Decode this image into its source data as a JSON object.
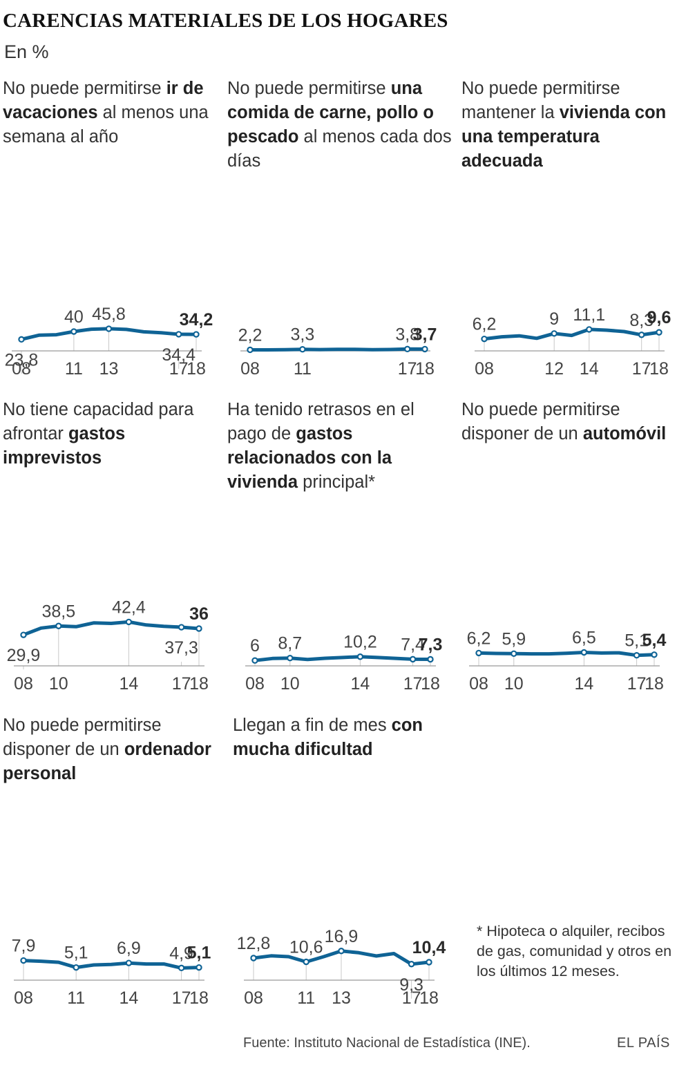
{
  "title": "CARENCIAS MATERIALES DE LOS HOGARES",
  "subtitle": "En %",
  "note": "* Hipoteca o alquiler, recibos de gas, comunidad y otros en los últimos 12 meses.",
  "source": "Fuente: Instituto Nacional de Estadística (INE).",
  "logo": "EL PAÍS",
  "colors": {
    "line": "#0f6395",
    "text": "#333333",
    "grid": "#c8c8c8"
  },
  "chart_data": [
    {
      "type": "line",
      "title_parts": [
        {
          "t": "No puede permitirse ",
          "b": false
        },
        {
          "t": "ir de vacaciones",
          "b": true
        },
        {
          "t": " al menos una semana al año",
          "b": false
        }
      ],
      "x": [
        2008,
        2009,
        2010,
        2011,
        2012,
        2013,
        2014,
        2015,
        2016,
        2017,
        2018
      ],
      "values": [
        23.8,
        32.5,
        33.5,
        40,
        44.8,
        45.8,
        44.5,
        39.5,
        37.5,
        34.4,
        34.2
      ],
      "ylim": [
        0,
        48
      ],
      "ticks": [
        {
          "x": 2008,
          "label": "08"
        },
        {
          "x": 2011,
          "label": "11"
        },
        {
          "x": 2013,
          "label": "13"
        },
        {
          "x": 2017,
          "label": "17"
        },
        {
          "x": 2018,
          "label": "18"
        }
      ],
      "markers": [
        {
          "x": 2008,
          "label": "23,8",
          "pos": "below"
        },
        {
          "x": 2011,
          "label": "40",
          "pos": "above"
        },
        {
          "x": 2013,
          "label": "45,8",
          "pos": "above"
        },
        {
          "x": 2017,
          "label": "34,4",
          "pos": "below"
        },
        {
          "x": 2018,
          "label": "34,2",
          "pos": "above",
          "last": true
        }
      ]
    },
    {
      "type": "line",
      "title_parts": [
        {
          "t": "No puede permitirse ",
          "b": false
        },
        {
          "t": "una comida de carne, pollo o pescado",
          "b": true
        },
        {
          "t": " al menos cada dos días",
          "b": false
        }
      ],
      "x": [
        2008,
        2009,
        2010,
        2011,
        2012,
        2013,
        2014,
        2015,
        2016,
        2017,
        2018
      ],
      "values": [
        2.2,
        2.1,
        2.6,
        3.3,
        2.7,
        3.2,
        3.2,
        2.6,
        2.8,
        3.8,
        3.7
      ],
      "ylim": [
        0,
        48
      ],
      "ticks": [
        {
          "x": 2008,
          "label": "08"
        },
        {
          "x": 2011,
          "label": "11"
        },
        {
          "x": 2017,
          "label": "17"
        },
        {
          "x": 2018,
          "label": "18"
        }
      ],
      "markers": [
        {
          "x": 2008,
          "label": "2,2",
          "pos": "above"
        },
        {
          "x": 2011,
          "label": "3,3",
          "pos": "above"
        },
        {
          "x": 2017,
          "label": "3,8",
          "pos": "above"
        },
        {
          "x": 2018,
          "label": "3,7",
          "pos": "above",
          "last": true
        }
      ]
    },
    {
      "type": "line",
      "title_parts": [
        {
          "t": "No puede permitirse mantener la ",
          "b": false
        },
        {
          "t": "vivienda con una temperatura adecuada",
          "b": true
        }
      ],
      "x": [
        2008,
        2009,
        2010,
        2011,
        2012,
        2013,
        2014,
        2015,
        2016,
        2017,
        2018
      ],
      "values": [
        6.2,
        7.3,
        7.8,
        6.5,
        9,
        8,
        11.1,
        10.7,
        10,
        8.3,
        9.6
      ],
      "ylim": [
        0,
        48
      ],
      "ticks": [
        {
          "x": 2008,
          "label": "08"
        },
        {
          "x": 2012,
          "label": "12"
        },
        {
          "x": 2014,
          "label": "14"
        },
        {
          "x": 2017,
          "label": "17"
        },
        {
          "x": 2018,
          "label": "18"
        }
      ],
      "markers": [
        {
          "x": 2008,
          "label": "6,2",
          "pos": "above"
        },
        {
          "x": 2012,
          "label": "9",
          "pos": "above"
        },
        {
          "x": 2014,
          "label": "11,1",
          "pos": "above"
        },
        {
          "x": 2017,
          "label": "8,3",
          "pos": "above"
        },
        {
          "x": 2018,
          "label": "9,6",
          "pos": "above",
          "last": true
        }
      ]
    },
    {
      "type": "line",
      "title_parts": [
        {
          "t": "No tiene capacidad para afrontar ",
          "b": false
        },
        {
          "t": "gastos imprevistos",
          "b": true
        }
      ],
      "x": [
        2008,
        2009,
        2010,
        2011,
        2012,
        2013,
        2014,
        2015,
        2016,
        2017,
        2018
      ],
      "values": [
        29.9,
        36.5,
        38.5,
        37.8,
        41.5,
        41,
        42.4,
        39.5,
        38.2,
        37.3,
        36
      ],
      "ylim": [
        0,
        48
      ],
      "ticks": [
        {
          "x": 2008,
          "label": "08"
        },
        {
          "x": 2010,
          "label": "10"
        },
        {
          "x": 2014,
          "label": "14"
        },
        {
          "x": 2017,
          "label": "17"
        },
        {
          "x": 2018,
          "label": "18"
        }
      ],
      "markers": [
        {
          "x": 2008,
          "label": "29,9",
          "pos": "below"
        },
        {
          "x": 2010,
          "label": "38,5",
          "pos": "above"
        },
        {
          "x": 2014,
          "label": "42,4",
          "pos": "above"
        },
        {
          "x": 2017,
          "label": "37,3",
          "pos": "below"
        },
        {
          "x": 2018,
          "label": "36",
          "pos": "above",
          "last": true
        }
      ]
    },
    {
      "type": "line",
      "title_parts": [
        {
          "t": "Ha tenido retrasos en el pago de ",
          "b": false
        },
        {
          "t": "gastos relacionados con la vivienda",
          "b": true
        },
        {
          "t": " principal*",
          "b": false
        }
      ],
      "x": [
        2008,
        2009,
        2010,
        2011,
        2012,
        2013,
        2014,
        2015,
        2016,
        2017,
        2018
      ],
      "values": [
        6,
        8.2,
        8.7,
        7.1,
        8.5,
        9.3,
        10.2,
        9.3,
        8.4,
        7.4,
        7.3
      ],
      "ylim": [
        0,
        48
      ],
      "ticks": [
        {
          "x": 2008,
          "label": "08"
        },
        {
          "x": 2010,
          "label": "10"
        },
        {
          "x": 2014,
          "label": "14"
        },
        {
          "x": 2017,
          "label": "17"
        },
        {
          "x": 2018,
          "label": "18"
        }
      ],
      "markers": [
        {
          "x": 2008,
          "label": "6",
          "pos": "above"
        },
        {
          "x": 2010,
          "label": "8,7",
          "pos": "above"
        },
        {
          "x": 2014,
          "label": "10,2",
          "pos": "above"
        },
        {
          "x": 2017,
          "label": "7,4",
          "pos": "above"
        },
        {
          "x": 2018,
          "label": "7,3",
          "pos": "above",
          "last": true
        }
      ]
    },
    {
      "type": "line",
      "title_parts": [
        {
          "t": "No puede permitirse disponer de un ",
          "b": false
        },
        {
          "t": "automóvil",
          "b": true
        }
      ],
      "x": [
        2008,
        2009,
        2010,
        2011,
        2012,
        2013,
        2014,
        2015,
        2016,
        2017,
        2018
      ],
      "values": [
        6.2,
        6.0,
        5.9,
        5.8,
        5.8,
        6.1,
        6.5,
        6.2,
        6.3,
        5.1,
        5.4
      ],
      "ylim": [
        0,
        48
      ],
      "ticks": [
        {
          "x": 2008,
          "label": "08"
        },
        {
          "x": 2010,
          "label": "10"
        },
        {
          "x": 2014,
          "label": "14"
        },
        {
          "x": 2017,
          "label": "17"
        },
        {
          "x": 2018,
          "label": "18"
        }
      ],
      "markers": [
        {
          "x": 2008,
          "label": "6,2",
          "pos": "above"
        },
        {
          "x": 2010,
          "label": "5,9",
          "pos": "above"
        },
        {
          "x": 2014,
          "label": "6,5",
          "pos": "above"
        },
        {
          "x": 2017,
          "label": "5,1",
          "pos": "above"
        },
        {
          "x": 2018,
          "label": "5,4",
          "pos": "above",
          "last": true
        }
      ]
    },
    {
      "type": "line",
      "title_parts": [
        {
          "t": "No puede permitirse disponer de un ",
          "b": false
        },
        {
          "t": "ordenador personal",
          "b": true
        }
      ],
      "x": [
        2008,
        2009,
        2010,
        2011,
        2012,
        2013,
        2014,
        2015,
        2016,
        2017,
        2018
      ],
      "values": [
        7.9,
        7.6,
        7.2,
        5.1,
        6.1,
        6.3,
        6.9,
        6.5,
        6.5,
        4.9,
        5.1
      ],
      "ylim": [
        0,
        48
      ],
      "ticks": [
        {
          "x": 2008,
          "label": "08"
        },
        {
          "x": 2011,
          "label": "11"
        },
        {
          "x": 2014,
          "label": "14"
        },
        {
          "x": 2017,
          "label": "17"
        },
        {
          "x": 2018,
          "label": "18"
        }
      ],
      "markers": [
        {
          "x": 2008,
          "label": "7,9",
          "pos": "above"
        },
        {
          "x": 2011,
          "label": "5,1",
          "pos": "above"
        },
        {
          "x": 2014,
          "label": "6,9",
          "pos": "above"
        },
        {
          "x": 2017,
          "label": "4,9",
          "pos": "above"
        },
        {
          "x": 2018,
          "label": "5,1",
          "pos": "above",
          "last": true
        }
      ]
    },
    {
      "type": "line",
      "title_parts": [
        {
          "t": "Llegan a fin de mes ",
          "b": false
        },
        {
          "t": "con mucha dificultad",
          "b": true
        }
      ],
      "x": [
        2008,
        2009,
        2010,
        2011,
        2012,
        2013,
        2014,
        2015,
        2016,
        2017,
        2018
      ],
      "values": [
        12.8,
        14.1,
        13.6,
        10.6,
        13.6,
        16.9,
        15.9,
        14,
        15.4,
        9.3,
        10.4
      ],
      "ylim": [
        0,
        48
      ],
      "ticks": [
        {
          "x": 2008,
          "label": "08"
        },
        {
          "x": 2011,
          "label": "11"
        },
        {
          "x": 2013,
          "label": "13"
        },
        {
          "x": 2017,
          "label": "17"
        },
        {
          "x": 2018,
          "label": "18"
        }
      ],
      "markers": [
        {
          "x": 2008,
          "label": "12,8",
          "pos": "above"
        },
        {
          "x": 2011,
          "label": "10,6",
          "pos": "above"
        },
        {
          "x": 2013,
          "label": "16,9",
          "pos": "above"
        },
        {
          "x": 2017,
          "label": "9,3",
          "pos": "below"
        },
        {
          "x": 2018,
          "label": "10,4",
          "pos": "above",
          "last": true
        }
      ]
    }
  ]
}
